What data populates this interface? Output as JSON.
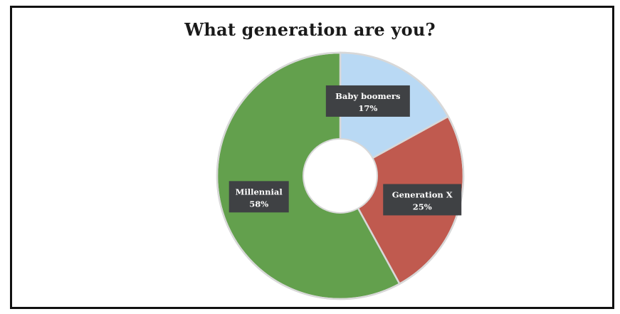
{
  "chart_data": {
    "type": "pie",
    "title": "What generation are you?",
    "donut": true,
    "categories": [
      "Baby boomers",
      "Generation X",
      "Millennial"
    ],
    "values": [
      17,
      25,
      58
    ],
    "percent_labels": [
      "17%",
      "25%",
      "58%"
    ],
    "colors": [
      "#b9d9f4",
      "#c05a4f",
      "#63a04d"
    ],
    "label_box_color": "#3f4144",
    "slice_border_color": "#d8d8d8",
    "legend": "none"
  }
}
